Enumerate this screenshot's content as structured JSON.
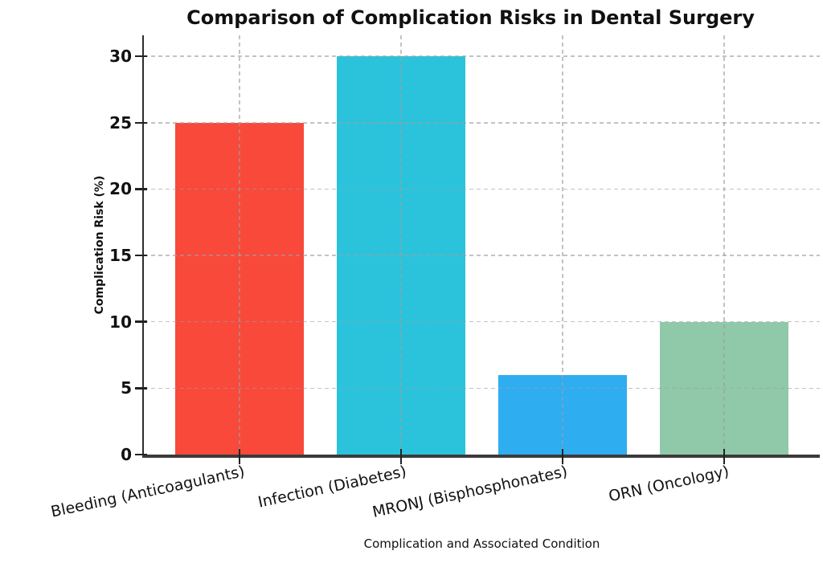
{
  "chart_data": {
    "type": "bar",
    "title": "Comparison of Complication Risks in Dental Surgery",
    "xlabel": "Complication and Associated Condition",
    "ylabel": "Complication Risk (%)",
    "categories": [
      "Bleeding (Anticoagulants)",
      "Infection (Diabetes)",
      "MRONJ (Bisphosphonates)",
      "ORN (Oncology)"
    ],
    "values": [
      25,
      30,
      6,
      10
    ],
    "bar_colors": [
      "#F8493B",
      "#2BC3DC",
      "#2FADF1",
      "#8FC9A9"
    ],
    "yticks": [
      0,
      5,
      10,
      15,
      20,
      25,
      30
    ],
    "ylim": [
      0,
      31.6
    ],
    "grid": "dashed light-gray gridlines, horizontal at each y-tick and vertical at each bar center, drawn over the bars",
    "legend": "none",
    "background": "#ffffff",
    "spine_color": "#3a3a3a"
  }
}
